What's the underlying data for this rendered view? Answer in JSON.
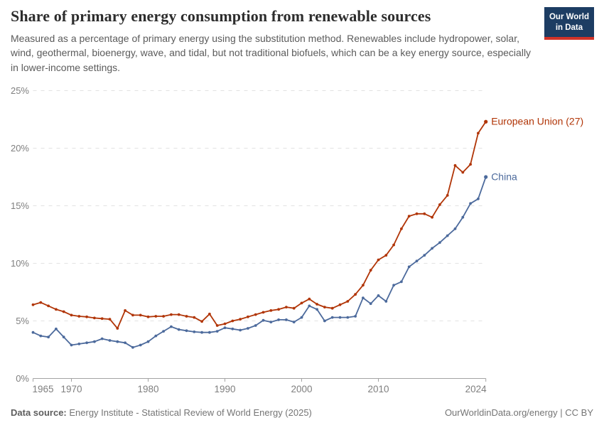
{
  "header": {
    "title": "Share of primary energy consumption from renewable sources",
    "subtitle": "Measured as a percentage of primary energy using the substitution method. Renewables include hydropower, solar, wind, geothermal, bioenergy, wave, and tidal, but not traditional biofuels, which can be a key energy source, especially in lower-income settings.",
    "logo_line1": "Our World",
    "logo_line2": "in Data"
  },
  "footer": {
    "source_label": "Data source:",
    "source_text": " Energy Institute - Statistical Review of World Energy (2025)",
    "rights_text": "OurWorldinData.org/energy | CC BY"
  },
  "colors": {
    "eu_red": "#b13507",
    "china_blue": "#4c6a9c",
    "gridline": "#e2e2e2",
    "axis": "#a3a3a3",
    "tick_label": "#7f7f7f",
    "logo_bg": "#1d3d63",
    "logo_stripe": "#d13328"
  },
  "chart_data": {
    "type": "line",
    "title": "Share of primary energy consumption from renewable sources",
    "xlabel": "",
    "ylabel": "",
    "ylim": [
      0,
      25
    ],
    "yticks": [
      0,
      5,
      10,
      15,
      20,
      25
    ],
    "ytick_suffix": "%",
    "xticks": [
      1965,
      1970,
      1980,
      1990,
      2000,
      2010,
      2024
    ],
    "grid": "horizontal-dashed",
    "legend_position": "end-of-line-labels",
    "x": [
      1965,
      1966,
      1967,
      1968,
      1969,
      1970,
      1971,
      1972,
      1973,
      1974,
      1975,
      1976,
      1977,
      1978,
      1979,
      1980,
      1981,
      1982,
      1983,
      1984,
      1985,
      1986,
      1987,
      1988,
      1989,
      1990,
      1991,
      1992,
      1993,
      1994,
      1995,
      1996,
      1997,
      1998,
      1999,
      2000,
      2001,
      2002,
      2003,
      2004,
      2005,
      2006,
      2007,
      2008,
      2009,
      2010,
      2011,
      2012,
      2013,
      2014,
      2015,
      2016,
      2017,
      2018,
      2019,
      2020,
      2021,
      2022,
      2023,
      2024
    ],
    "series": [
      {
        "name": "European Union (27)",
        "color": "#b13507",
        "values": [
          6.4,
          6.6,
          6.3,
          6.0,
          5.8,
          5.5,
          5.4,
          5.35,
          5.25,
          5.2,
          5.15,
          4.35,
          5.9,
          5.5,
          5.5,
          5.35,
          5.4,
          5.4,
          5.55,
          5.55,
          5.4,
          5.3,
          4.95,
          5.6,
          4.6,
          4.75,
          5.0,
          5.15,
          5.35,
          5.55,
          5.75,
          5.9,
          6.0,
          6.2,
          6.1,
          6.55,
          6.9,
          6.45,
          6.2,
          6.1,
          6.4,
          6.7,
          7.3,
          8.1,
          9.4,
          10.3,
          10.7,
          11.6,
          13.0,
          14.1,
          14.3,
          14.3,
          14.0,
          15.1,
          15.9,
          18.5,
          17.9,
          18.6,
          21.3,
          22.3
        ]
      },
      {
        "name": "China",
        "color": "#4c6a9c",
        "values": [
          4.0,
          3.7,
          3.6,
          4.3,
          3.6,
          2.9,
          3.0,
          3.1,
          3.2,
          3.45,
          3.3,
          3.2,
          3.1,
          2.7,
          2.9,
          3.2,
          3.7,
          4.1,
          4.5,
          4.25,
          4.15,
          4.05,
          4.0,
          4.0,
          4.1,
          4.4,
          4.3,
          4.2,
          4.35,
          4.6,
          5.05,
          4.9,
          5.1,
          5.1,
          4.9,
          5.3,
          6.3,
          6.0,
          5.0,
          5.3,
          5.3,
          5.3,
          5.4,
          7.0,
          6.5,
          7.2,
          6.7,
          8.1,
          8.4,
          9.7,
          10.2,
          10.7,
          11.3,
          11.8,
          12.4,
          13.0,
          14.0,
          15.2,
          15.6,
          17.5
        ]
      }
    ]
  }
}
